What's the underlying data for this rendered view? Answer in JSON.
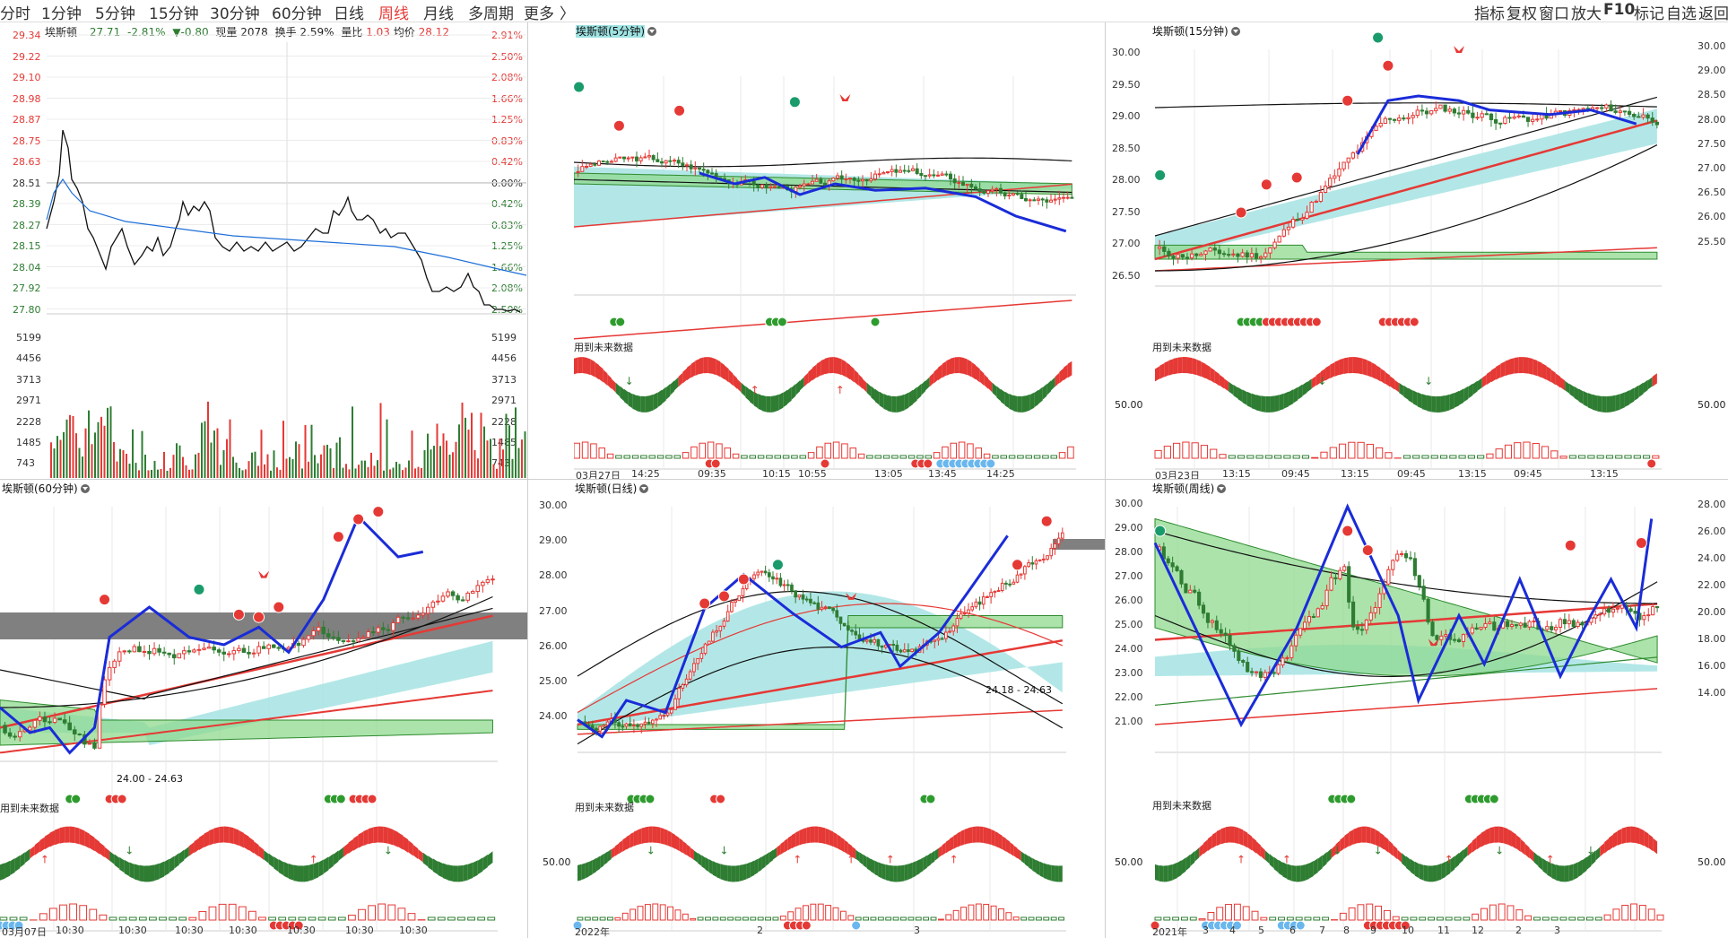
{
  "toolbar": {
    "periods": [
      "分时",
      "1分钟",
      "5分钟",
      "15分钟",
      "30分钟",
      "60分钟",
      "日线",
      "周线",
      "月线",
      "多周期",
      "更多"
    ],
    "active_period": "周线",
    "more_arrow": "〉",
    "right_tools": [
      "指标",
      "复权",
      "窗口",
      "放大",
      "F10",
      "标记",
      "自选",
      "返回"
    ]
  },
  "fenshi": {
    "title": "埃斯顿",
    "price": "27.71",
    "change_pct": "-2.81%",
    "change": "▼-0.80",
    "volume": "现量 2078",
    "turnover": "换手 2.59%",
    "ratio_label": "量比",
    "ratio_value": "1.03",
    "avg_label": "均价",
    "avg_value": "28.12",
    "price_ticks": [
      "29.34",
      "29.22",
      "29.10",
      "28.98",
      "28.87",
      "28.75",
      "28.63",
      "28.51",
      "28.39",
      "28.27",
      "28.15",
      "28.04",
      "27.92",
      "27.80"
    ],
    "pct_ticks": [
      "2.91%",
      "2.50%",
      "2.08%",
      "1.66%",
      "1.25%",
      "0.83%",
      "0.42%",
      "0.00%",
      "0.42%",
      "0.83%",
      "1.25%",
      "1.66%",
      "2.08%",
      "2.50%"
    ],
    "vol_ticks": [
      "5199",
      "4456",
      "3713",
      "2971",
      "2228",
      "1485",
      "743"
    ],
    "colors": {
      "up": "#e53935",
      "down": "#2e7d32",
      "price": "#111111",
      "avg": "#1e6fd9"
    }
  },
  "panels": {
    "m5": {
      "title": "埃斯顿(5分钟)",
      "note": "用到未来数据",
      "x_labels": [
        "03月27日",
        "14:25",
        "09:35",
        "10:15",
        "10:55",
        "13:05",
        "13:45",
        "14:25"
      ]
    },
    "m15": {
      "title": "埃斯顿(15分钟)",
      "note": "用到未来数据",
      "y_ticks": [
        "30.00",
        "29.50",
        "29.00",
        "28.50",
        "28.00",
        "27.50",
        "27.00",
        "26.50"
      ],
      "right_ticks": [
        "30.00",
        "29.00",
        "28.50",
        "28.00",
        "27.50",
        "27.00",
        "26.50",
        "26.00",
        "25.50"
      ],
      "osc_tick": "50.00",
      "x_labels": [
        "03月23日",
        "13:15",
        "09:45",
        "13:15",
        "09:45",
        "13:15",
        "09:45",
        "13:15"
      ]
    },
    "m60": {
      "title": "埃斯顿(60分钟)",
      "note": "用到未来数据",
      "range_label": "24.00 - 24.63",
      "x_labels": [
        "03月07日",
        "10:30",
        "10:30",
        "10:30",
        "10:30",
        "10:30",
        "10:30",
        "10:30"
      ]
    },
    "day": {
      "title": "埃斯顿(日线)",
      "note": "用到未来数据",
      "range_label": "24.18 - 24.63",
      "y_ticks": [
        "30.00",
        "29.00",
        "28.00",
        "27.00",
        "26.00",
        "25.00",
        "24.00"
      ],
      "osc_tick": "50.00",
      "x_labels": [
        "2022年",
        "2",
        "3"
      ]
    },
    "week": {
      "title": "埃斯顿(周线)",
      "note": "用到未来数据",
      "y_ticks": [
        "30.00",
        "29.00",
        "28.00",
        "27.00",
        "26.00",
        "25.00",
        "24.00",
        "23.00",
        "22.00",
        "21.00"
      ],
      "right_ticks": [
        "28.00",
        "26.00",
        "24.00",
        "22.00",
        "20.00",
        "18.00",
        "16.00",
        "14.00"
      ],
      "osc_tick": "50.00",
      "x_labels": [
        "2021年",
        "3",
        "4",
        "5",
        "6",
        "7",
        "8",
        "9",
        "10",
        "11",
        "12",
        "2",
        "3"
      ]
    }
  }
}
